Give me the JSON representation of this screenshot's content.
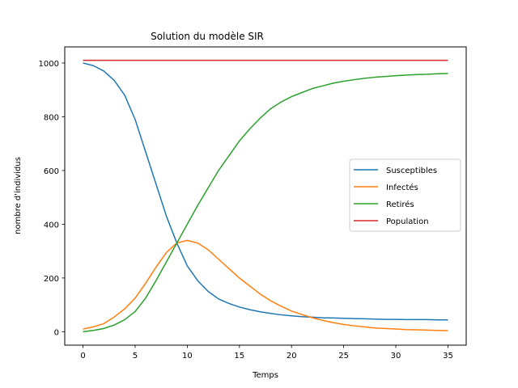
{
  "chart_data": {
    "type": "line",
    "title": "Solution du modèle SIR",
    "xlabel": "Temps",
    "ylabel": "nombre d'individus",
    "xlim": [
      -1.75,
      36.75
    ],
    "ylim": [
      -50,
      1060
    ],
    "xticks": [
      0,
      5,
      10,
      15,
      20,
      25,
      30,
      35
    ],
    "yticks": [
      0,
      200,
      400,
      600,
      800,
      1000
    ],
    "grid": false,
    "legend_position": "center-right",
    "series": [
      {
        "name": "Susceptibles",
        "color": "#1f77b4",
        "x": [
          0,
          1,
          2,
          3,
          4,
          5,
          6,
          7,
          8,
          9,
          10,
          11,
          12,
          13,
          14,
          15,
          16,
          17,
          18,
          19,
          20,
          21,
          22,
          23,
          24,
          25,
          26,
          27,
          28,
          29,
          30,
          31,
          32,
          33,
          34,
          35
        ],
        "y": [
          1000,
          990,
          970,
          935,
          880,
          790,
          670,
          550,
          430,
          330,
          245,
          190,
          150,
          122,
          105,
          92,
          82,
          74,
          68,
          63,
          59,
          56,
          54,
          52,
          51,
          50,
          49,
          48,
          47,
          46,
          46,
          45,
          45,
          45,
          44,
          44
        ]
      },
      {
        "name": "Infectés",
        "color": "#ff7f0e",
        "x": [
          0,
          1,
          2,
          3,
          4,
          5,
          6,
          7,
          8,
          9,
          10,
          11,
          12,
          13,
          14,
          15,
          16,
          17,
          18,
          19,
          20,
          21,
          22,
          23,
          24,
          25,
          26,
          27,
          28,
          29,
          30,
          31,
          32,
          33,
          34,
          35
        ],
        "y": [
          10,
          18,
          30,
          55,
          85,
          125,
          180,
          240,
          295,
          330,
          340,
          330,
          305,
          270,
          235,
          200,
          170,
          140,
          115,
          95,
          77,
          64,
          52,
          42,
          34,
          27,
          22,
          18,
          14,
          12,
          10,
          8,
          7,
          6,
          5,
          4
        ]
      },
      {
        "name": "Retirés",
        "color": "#2ca02c",
        "x": [
          0,
          1,
          2,
          3,
          4,
          5,
          6,
          7,
          8,
          9,
          10,
          11,
          12,
          13,
          14,
          15,
          16,
          17,
          18,
          19,
          20,
          21,
          22,
          23,
          24,
          25,
          26,
          27,
          28,
          29,
          30,
          31,
          32,
          33,
          34,
          35
        ],
        "y": [
          0,
          5,
          12,
          25,
          45,
          75,
          125,
          190,
          260,
          330,
          400,
          470,
          535,
          600,
          655,
          710,
          755,
          795,
          830,
          855,
          875,
          890,
          905,
          915,
          925,
          932,
          938,
          943,
          947,
          950,
          953,
          955,
          957,
          958,
          960,
          961
        ]
      },
      {
        "name": "Population",
        "color": "#d62728",
        "x": [
          0,
          35
        ],
        "y": [
          1010,
          1010
        ]
      }
    ]
  }
}
